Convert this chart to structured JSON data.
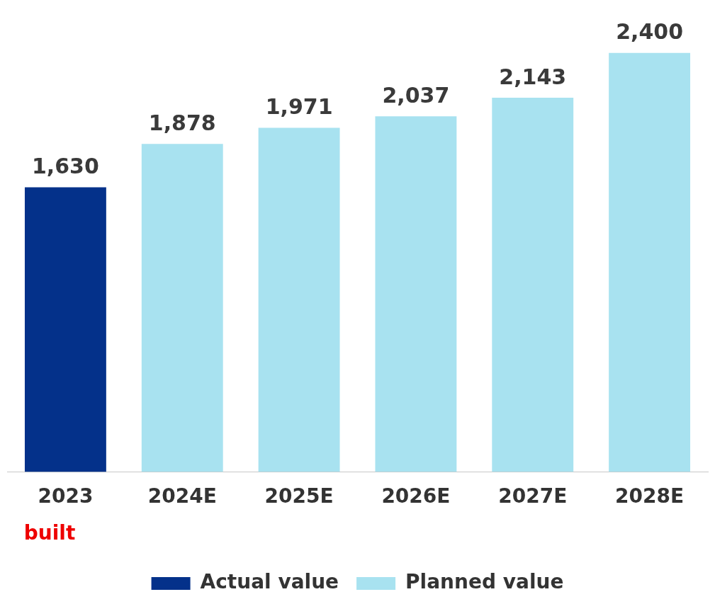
{
  "chart_data": {
    "type": "bar",
    "categories": [
      "2023",
      "2024E",
      "2025E",
      "2026E",
      "2027E",
      "2028E"
    ],
    "series": [
      {
        "name": "Actual value",
        "color": "#04318a",
        "values": [
          1630,
          null,
          null,
          null,
          null,
          null
        ],
        "value_labels": [
          "1,630",
          null,
          null,
          null,
          null,
          null
        ]
      },
      {
        "name": "Planned value",
        "color": "#a8e2f0",
        "values": [
          null,
          1878,
          1971,
          2037,
          2143,
          2400
        ],
        "value_labels": [
          null,
          "1,878",
          "1,971",
          "2,037",
          "2,143",
          "2,400"
        ]
      }
    ],
    "legend": "bottom",
    "grid": false,
    "annotations": [
      "built"
    ]
  }
}
